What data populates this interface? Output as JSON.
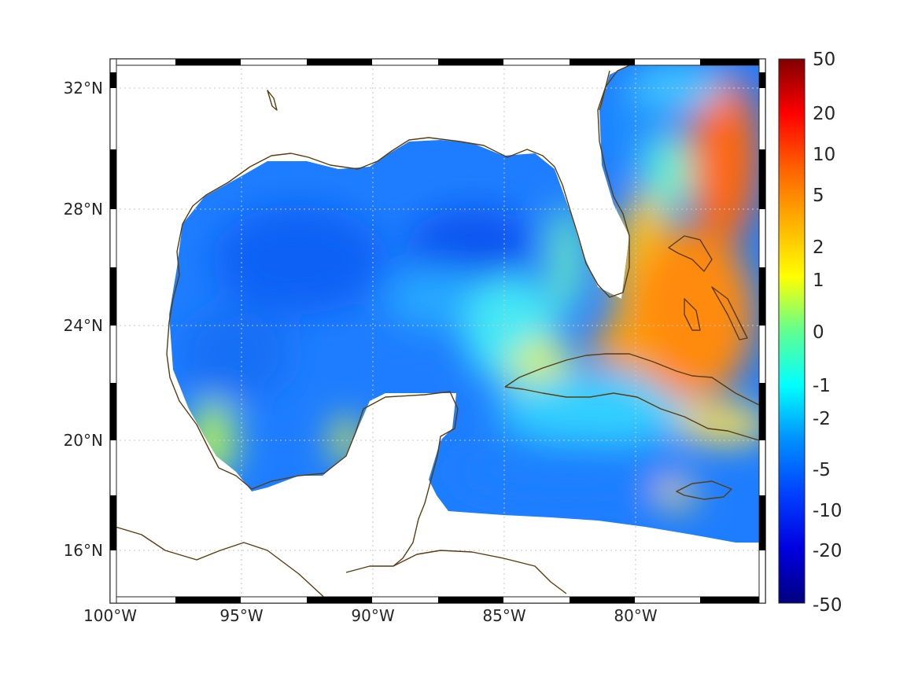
{
  "map": {
    "type": "filled-contour map",
    "region": "Gulf of Mexico, Caribbean and western Atlantic",
    "lon_range": [
      -100,
      -75
    ],
    "lat_range": [
      14.2,
      33
    ],
    "lat_ticks": [
      "32°N",
      "28°N",
      "24°N",
      "20°N",
      "16°N"
    ],
    "lon_ticks": [
      "100°W",
      "95°W",
      "90°W",
      "85°W",
      "80°W"
    ],
    "grid": true,
    "coastline_color": "#5a3c0f",
    "no_data_color": "#ffffff"
  },
  "colorbar": {
    "labels": [
      "50",
      "20",
      "10",
      "5",
      "2",
      "1",
      "0",
      "-1",
      "-2",
      "-5",
      "-10",
      "-20",
      "-50"
    ],
    "colors": [
      "#800000",
      "#ff0000",
      "#ff8000",
      "#ffff00",
      "#00ff80",
      "#00ffff",
      "#0080ff",
      "#0000ff",
      "#000080"
    ],
    "scale": "nonlinear"
  },
  "chart_data": {
    "type": "heatmap",
    "title": "",
    "xlabel": "",
    "ylabel": "",
    "xlim": [
      -100,
      -75
    ],
    "ylim": [
      14.2,
      33
    ],
    "colorbar_range": [
      -50,
      50
    ],
    "colorbar_ticks": [
      -50,
      -20,
      -10,
      -5,
      -2,
      -1,
      0,
      1,
      2,
      5,
      10,
      20,
      50
    ],
    "regions": [
      {
        "name": "western Gulf of Mexico",
        "approx_value": -6
      },
      {
        "name": "central/eastern Gulf of Mexico",
        "approx_value": -8
      },
      {
        "name": "Yucatan Channel / Florida Straits",
        "approx_value": 1
      },
      {
        "name": "Bahamas region",
        "approx_value": 7
      },
      {
        "name": "western Atlantic off Florida/Georgia",
        "approx_value": 12
      },
      {
        "name": "Caribbean Sea south of Cuba",
        "approx_value": -3
      }
    ]
  }
}
